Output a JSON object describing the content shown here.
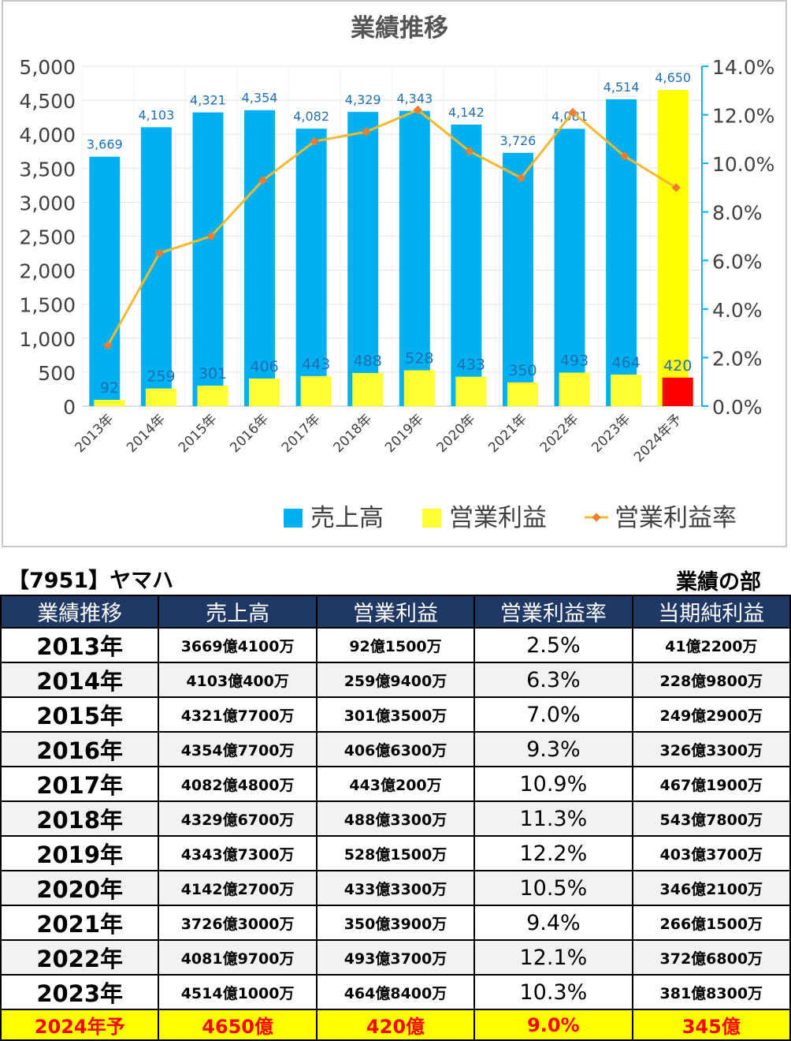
{
  "chart_data": {
    "type": "bar",
    "title": "業績推移",
    "categories": [
      "2013年",
      "2014年",
      "2015年",
      "2016年",
      "2017年",
      "2018年",
      "2019年",
      "2020年",
      "2021年",
      "2022年",
      "2023年",
      "2024年予"
    ],
    "series": [
      {
        "name": "売上高",
        "kind": "bar",
        "axis": "left",
        "color": "#00b0f0",
        "values": [
          3669,
          4103,
          4321,
          4354,
          4082,
          4329,
          4343,
          4142,
          3726,
          4081,
          4514,
          4650
        ],
        "labels": [
          "3,669",
          "4,103",
          "4,321",
          "4,354",
          "4,082",
          "4,329",
          "4,343",
          "4,142",
          "3,726",
          "4,081",
          "4,514",
          "4,650"
        ]
      },
      {
        "name": "営業利益",
        "kind": "bar",
        "axis": "left",
        "color": "#ffff33",
        "values": [
          92,
          259,
          301,
          406,
          443,
          488,
          528,
          433,
          350,
          493,
          464,
          420
        ],
        "labels": [
          "92",
          "259",
          "301",
          "406",
          "443",
          "488",
          "528",
          "433",
          "350",
          "493",
          "464",
          "420"
        ]
      },
      {
        "name": "営業利益率",
        "kind": "line",
        "axis": "right",
        "color": "#f5b82e",
        "values": [
          2.5,
          6.3,
          7.0,
          9.3,
          10.9,
          11.3,
          12.2,
          10.5,
          9.4,
          12.1,
          10.3,
          9.0
        ]
      }
    ],
    "forecast_colors": {
      "sales": "#ffff00",
      "profit": "#ff0000"
    },
    "ylim": [
      0,
      5000
    ],
    "yticks": [
      "0",
      "500",
      "1,000",
      "1,500",
      "2,000",
      "2,500",
      "3,000",
      "3,500",
      "4,000",
      "4,500",
      "5,000"
    ],
    "y2lim": [
      0,
      14
    ],
    "y2ticks": [
      "0.0%",
      "2.0%",
      "4.0%",
      "6.0%",
      "8.0%",
      "10.0%",
      "12.0%",
      "14.0%"
    ],
    "grid": true,
    "legend": "bottom"
  },
  "header": {
    "company": "【7951】ヤマハ",
    "section": "業績の部"
  },
  "table": {
    "columns": [
      "業績推移",
      "売上高",
      "営業利益",
      "営業利益率",
      "当期純利益"
    ],
    "rows": [
      [
        "2013年",
        "3669億4100万",
        "92億1500万",
        "2.5%",
        "41億2200万"
      ],
      [
        "2014年",
        "4103億400万",
        "259億9400万",
        "6.3%",
        "228億9800万"
      ],
      [
        "2015年",
        "4321億7700万",
        "301億3500万",
        "7.0%",
        "249億2900万"
      ],
      [
        "2016年",
        "4354億7700万",
        "406億6300万",
        "9.3%",
        "326億3300万"
      ],
      [
        "2017年",
        "4082億4800万",
        "443億200万",
        "10.9%",
        "467億1900万"
      ],
      [
        "2018年",
        "4329億6700万",
        "488億3300万",
        "11.3%",
        "543億7800万"
      ],
      [
        "2019年",
        "4343億7300万",
        "528億1500万",
        "12.2%",
        "403億3700万"
      ],
      [
        "2020年",
        "4142億2700万",
        "433億3300万",
        "10.5%",
        "346億2100万"
      ],
      [
        "2021年",
        "3726億3000万",
        "350億3900万",
        "9.4%",
        "266億1500万"
      ],
      [
        "2022年",
        "4081億9700万",
        "493億3700万",
        "12.1%",
        "372億6800万"
      ],
      [
        "2023年",
        "4514億1000万",
        "464億8400万",
        "10.3%",
        "381億8300万"
      ],
      [
        "2024年予",
        "4650億",
        "420億",
        "9.0%",
        "345億"
      ]
    ]
  }
}
